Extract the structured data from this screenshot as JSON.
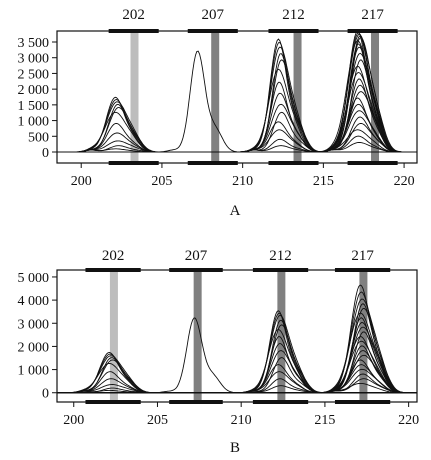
{
  "chart_data": [
    {
      "type": "line",
      "panel_label": "A",
      "xlim": [
        198.5,
        220.8
      ],
      "ylim": [
        -350,
        3850
      ],
      "xticks": [
        200,
        205,
        210,
        215,
        220
      ],
      "yticks": [
        0,
        500,
        1000,
        1500,
        2000,
        2500,
        3000,
        3500
      ],
      "ytick_labels": [
        "0",
        "500",
        "1 000",
        "1 500",
        "2 000",
        "2 500",
        "3 000",
        "3 500"
      ],
      "markers": [
        {
          "label": "202",
          "bar_start": 201.7,
          "bar_end": 204.8,
          "band_x": 203.3,
          "band_color": "#bdbdbd"
        },
        {
          "label": "207",
          "bar_start": 206.6,
          "bar_end": 209.7,
          "band_x": 208.3,
          "band_color": "#808080"
        },
        {
          "label": "212",
          "bar_start": 211.6,
          "bar_end": 214.7,
          "band_x": 213.4,
          "band_color": "#808080"
        },
        {
          "label": "217",
          "bar_start": 216.5,
          "bar_end": 219.6,
          "band_x": 218.2,
          "band_color": "#808080"
        }
      ],
      "peak_groups": [
        {
          "center": 202.2,
          "width": 0.55,
          "heights": [
            1720,
            1650,
            1580,
            1500,
            1400,
            1250,
            900,
            600,
            350,
            200,
            100
          ]
        },
        {
          "center": 207.3,
          "width": 0.45,
          "heights": [
            3180
          ]
        },
        {
          "center": 212.3,
          "width": 0.5,
          "heights": [
            3550,
            3450,
            3300,
            3100,
            2900,
            2600,
            2200,
            1850,
            1500,
            1250,
            950,
            700,
            400,
            200
          ]
        },
        {
          "center": 217.2,
          "width": 0.55,
          "heights": [
            3800,
            3750,
            3700,
            3650,
            3600,
            3500,
            3400,
            3300,
            3100,
            2900,
            2700,
            2500,
            2300,
            2100,
            1900,
            1700,
            1500,
            1300,
            1100,
            900,
            700,
            500,
            300
          ]
        }
      ]
    },
    {
      "type": "line",
      "panel_label": "B",
      "xlim": [
        199.0,
        220.5
      ],
      "ylim": [
        -400,
        5300
      ],
      "xticks": [
        200,
        205,
        210,
        215,
        220
      ],
      "yticks": [
        0,
        1000,
        2000,
        3000,
        4000,
        5000
      ],
      "ytick_labels": [
        "0",
        "1 000",
        "2 000",
        "3 000",
        "4 000",
        "5 000"
      ],
      "markers": [
        {
          "label": "202",
          "bar_start": 200.7,
          "bar_end": 204.0,
          "band_x": 202.4,
          "band_color": "#bdbdbd"
        },
        {
          "label": "207",
          "bar_start": 205.7,
          "bar_end": 208.9,
          "band_x": 207.4,
          "band_color": "#808080"
        },
        {
          "label": "212",
          "bar_start": 210.7,
          "bar_end": 214.0,
          "band_x": 212.4,
          "band_color": "#808080"
        },
        {
          "label": "217",
          "bar_start": 215.6,
          "bar_end": 218.9,
          "band_x": 217.3,
          "band_color": "#808080"
        }
      ],
      "peak_groups": [
        {
          "center": 202.2,
          "width": 0.55,
          "heights": [
            1720,
            1650,
            1580,
            1500,
            1400,
            1250,
            900,
            600,
            350,
            200,
            100
          ]
        },
        {
          "center": 207.3,
          "width": 0.45,
          "heights": [
            3200
          ]
        },
        {
          "center": 212.3,
          "width": 0.5,
          "heights": [
            3500,
            3400,
            3300,
            3100,
            2900,
            2700,
            2400,
            2100,
            1800,
            1500,
            1200,
            900,
            600,
            300
          ]
        },
        {
          "center": 217.2,
          "width": 0.55,
          "heights": [
            4600,
            4300,
            4000,
            3800,
            3600,
            3400,
            3200,
            3000,
            2800,
            2600,
            2400,
            2200,
            2000,
            1800,
            1600,
            1400,
            1200,
            1000,
            800,
            600,
            400
          ]
        }
      ]
    }
  ]
}
